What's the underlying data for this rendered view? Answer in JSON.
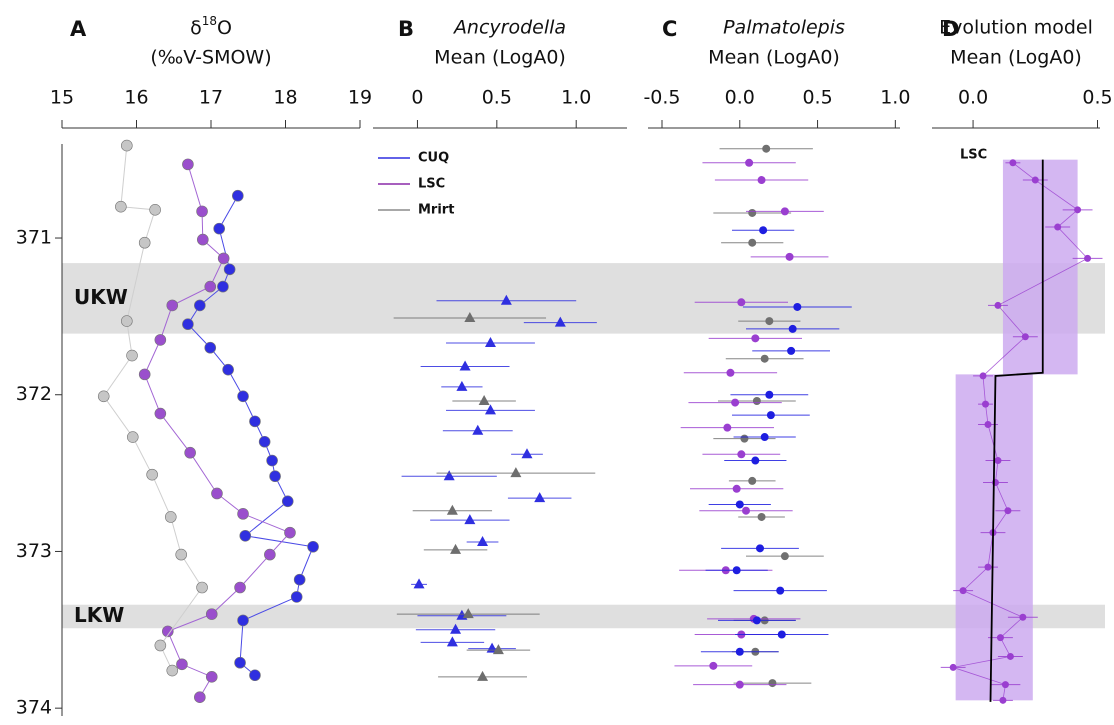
{
  "chart_data": [
    {
      "type": "line",
      "panel": "A",
      "title": "δ",
      "title_sup": "18",
      "title_end": "O",
      "subtitle": "(‰V-SMOW)",
      "xlim": [
        15,
        19
      ],
      "xticks": [
        15,
        16,
        17,
        18,
        19
      ],
      "ylim": [
        370.4,
        374.05
      ],
      "yticks": [
        371,
        372,
        373,
        374
      ],
      "y_reversed": true,
      "bands": [
        {
          "label": "UKW",
          "from": 371.16,
          "to": 371.61
        },
        {
          "label": "LKW",
          "from": 373.34,
          "to": 373.49
        }
      ],
      "band_color": "#dcdcdc",
      "series": [
        {
          "name": "CUQ",
          "color": "#2f2fe0",
          "line_color": "#4a4ae6",
          "depth": [
            370.73,
            370.94,
            371.2,
            371.31,
            371.43,
            371.55,
            371.7,
            371.84,
            372.01,
            372.17,
            372.3,
            372.42,
            372.52,
            372.68,
            372.9,
            372.97,
            373.18,
            373.29,
            373.44,
            373.71,
            373.79
          ],
          "values": [
            17.36,
            17.11,
            17.25,
            17.16,
            16.85,
            16.69,
            16.99,
            17.23,
            17.43,
            17.59,
            17.72,
            17.82,
            17.86,
            18.03,
            17.46,
            18.37,
            18.19,
            18.15,
            17.43,
            17.39,
            17.59
          ]
        },
        {
          "name": "LSC",
          "color": "#9a4fcc",
          "line_color": "#a366d4",
          "depth": [
            370.53,
            370.83,
            371.01,
            371.13,
            371.31,
            371.43,
            371.65,
            371.87,
            372.12,
            372.37,
            372.63,
            372.76,
            372.88,
            373.02,
            373.23,
            373.4,
            373.51,
            373.72,
            373.8,
            373.93
          ],
          "values": [
            16.69,
            16.88,
            16.89,
            17.17,
            16.99,
            16.48,
            16.32,
            16.11,
            16.32,
            16.72,
            17.08,
            17.43,
            18.06,
            17.79,
            17.39,
            17.01,
            16.42,
            16.61,
            17.01,
            16.85
          ]
        },
        {
          "name": "Mrirt",
          "color": "#c6c6c6",
          "line_color": "#cfcfcf",
          "depth": [
            370.41,
            370.8,
            370.82,
            371.03,
            371.53,
            371.75,
            372.01,
            372.27,
            372.51,
            372.78,
            373.02,
            373.23,
            373.6,
            373.76
          ],
          "values": [
            15.87,
            15.79,
            16.25,
            16.11,
            15.87,
            15.94,
            15.56,
            15.95,
            16.21,
            16.46,
            16.6,
            16.88,
            16.32,
            16.48
          ]
        }
      ]
    },
    {
      "type": "errorbar",
      "panel": "B",
      "title": "Ancyrodella",
      "subtitle": "Mean (LogA0)",
      "marker": "triangle",
      "xlim": [
        -0.28,
        1.32
      ],
      "xticks": [
        0,
        0.5,
        {
          "value": 1,
          "label": "1.0"
        }
      ],
      "ylim": [
        370.4,
        374.05
      ],
      "y_reversed": true,
      "legend": [
        {
          "name": "CUQ",
          "color": "#2f2fe0"
        },
        {
          "name": "LSC",
          "color": "#8a2aa8"
        },
        {
          "name": "Mrirt",
          "color": "#8c8c8c"
        }
      ],
      "series": [
        {
          "name": "CUQ",
          "color": "#2f2fe0",
          "depth": [
            371.4,
            371.54,
            371.67,
            371.82,
            371.95,
            372.1,
            372.23,
            372.38,
            372.52,
            372.66,
            372.8,
            372.94,
            373.21,
            373.41,
            373.5,
            373.58,
            373.62
          ],
          "values": [
            0.56,
            0.9,
            0.46,
            0.3,
            0.28,
            0.46,
            0.38,
            0.69,
            0.2,
            0.77,
            0.33,
            0.41,
            0.01,
            0.28,
            0.24,
            0.22,
            0.47
          ],
          "errors": [
            0.44,
            0.23,
            0.28,
            0.28,
            0.13,
            0.28,
            0.22,
            0.1,
            0.3,
            0.2,
            0.25,
            0.1,
            0.05,
            0.28,
            0.25,
            0.2,
            0.15
          ]
        },
        {
          "name": "Mrirt",
          "color": "#6e6e6e",
          "depth": [
            371.51,
            372.04,
            372.5,
            372.74,
            372.99,
            373.4,
            373.63,
            373.8
          ],
          "values": [
            0.33,
            0.42,
            0.62,
            0.22,
            0.24,
            0.32,
            0.51,
            0.41
          ],
          "errors": [
            0.48,
            0.2,
            0.5,
            0.25,
            0.2,
            0.45,
            0.2,
            0.28
          ]
        }
      ]
    },
    {
      "type": "errorbar",
      "panel": "C",
      "title": "Palmatolepis",
      "subtitle": "Mean (LogA0)",
      "marker": "circle",
      "xlim": [
        -0.59,
        1.03
      ],
      "xticks": [
        -0.5,
        {
          "value": 0,
          "label": "0.0"
        },
        0.5,
        {
          "value": 1,
          "label": "1.0"
        }
      ],
      "ylim": [
        370.4,
        374.05
      ],
      "y_reversed": true,
      "series": [
        {
          "name": "Mrirt",
          "color": "#707070",
          "depth": [
            370.43,
            370.84,
            371.03,
            371.53,
            371.77,
            372.04,
            372.28,
            372.55,
            372.78,
            373.03,
            373.44,
            373.64,
            373.84
          ],
          "values": [
            0.17,
            0.08,
            0.08,
            0.19,
            0.16,
            0.11,
            0.03,
            0.08,
            0.14,
            0.29,
            0.16,
            0.1,
            0.21
          ],
          "errors": [
            0.3,
            0.25,
            0.2,
            0.2,
            0.25,
            0.25,
            0.2,
            0.15,
            0.15,
            0.25,
            0.2,
            0.15,
            0.25
          ]
        },
        {
          "name": "LSC",
          "color": "#9a3fd0",
          "depth": [
            370.52,
            370.63,
            370.83,
            371.12,
            371.41,
            371.64,
            371.86,
            372.05,
            372.21,
            372.38,
            372.6,
            372.74,
            373.12,
            373.43,
            373.53,
            373.73,
            373.85
          ],
          "values": [
            0.06,
            0.14,
            0.29,
            0.32,
            0.01,
            0.1,
            -0.06,
            -0.03,
            -0.08,
            0.01,
            -0.02,
            0.04,
            -0.09,
            0.09,
            0.01,
            -0.17,
            0.0
          ],
          "errors": [
            0.3,
            0.3,
            0.25,
            0.25,
            0.3,
            0.3,
            0.3,
            0.3,
            0.3,
            0.25,
            0.3,
            0.3,
            0.3,
            0.3,
            0.3,
            0.25,
            0.3
          ]
        },
        {
          "name": "CUQ",
          "color": "#1e1ee0",
          "depth": [
            370.95,
            371.44,
            371.58,
            371.72,
            372.0,
            372.13,
            372.27,
            372.42,
            372.7,
            372.98,
            373.12,
            373.25,
            373.44,
            373.53,
            373.64
          ],
          "values": [
            0.15,
            0.37,
            0.34,
            0.33,
            0.19,
            0.2,
            0.16,
            0.1,
            0.0,
            0.13,
            -0.02,
            0.26,
            0.11,
            0.27,
            0.0
          ],
          "errors": [
            0.2,
            0.35,
            0.3,
            0.25,
            0.25,
            0.25,
            0.2,
            0.2,
            0.2,
            0.25,
            0.2,
            0.3,
            0.25,
            0.3,
            0.25
          ]
        }
      ]
    },
    {
      "type": "model",
      "panel": "D",
      "title": "Evolution model",
      "subtitle": "Mean (LogA0)",
      "xlim": [
        -0.165,
        0.51
      ],
      "xticks": [
        {
          "value": 0,
          "label": "0.0"
        },
        0.5
      ],
      "ylim": [
        370.4,
        374.05
      ],
      "y_reversed": true,
      "intervals": [
        {
          "from": 370.5,
          "to": 371.87,
          "low": 0.12,
          "high": 0.42
        },
        {
          "from": 371.87,
          "to": 373.95,
          "low": -0.07,
          "high": 0.24
        }
      ],
      "interval_color": "#cdaaf0",
      "model": {
        "depth": [
          370.5,
          371.86,
          371.88,
          373.96
        ],
        "values": [
          0.28,
          0.28,
          0.09,
          0.07
        ]
      },
      "model_color": "#000000",
      "series": [
        {
          "name": "LSC",
          "color": "#9a3fd0",
          "depth": [
            370.52,
            370.63,
            370.82,
            370.93,
            371.13,
            371.43,
            371.63,
            371.88,
            372.06,
            372.19,
            372.42,
            372.56,
            372.74,
            372.88,
            373.1,
            373.25,
            373.42,
            373.55,
            373.67,
            373.74,
            373.85,
            373.95
          ],
          "values": [
            0.16,
            0.25,
            0.42,
            0.34,
            0.46,
            0.1,
            0.21,
            0.04,
            0.05,
            0.06,
            0.1,
            0.09,
            0.14,
            0.08,
            0.06,
            -0.04,
            0.2,
            0.11,
            0.15,
            -0.08,
            0.13,
            0.12
          ],
          "errors": [
            0.03,
            0.05,
            0.06,
            0.05,
            0.06,
            0.04,
            0.05,
            0.04,
            0.03,
            0.04,
            0.05,
            0.05,
            0.05,
            0.05,
            0.04,
            0.04,
            0.06,
            0.05,
            0.05,
            0.05,
            0.06,
            0.04
          ]
        }
      ]
    }
  ]
}
